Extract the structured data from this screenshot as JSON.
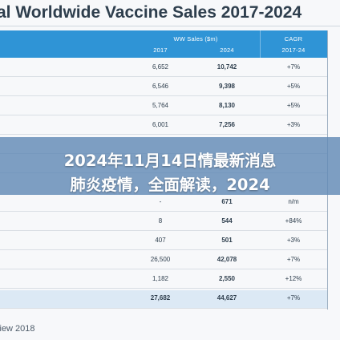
{
  "title": "al Worldwide Vaccine Sales 2017-2024",
  "header": {
    "sales_group": "WW Sales ($m)",
    "col_2017": "2017",
    "col_2024": "2024",
    "cagr_line1": "CAGR",
    "cagr_line2": "2017-24"
  },
  "rows": [
    {
      "y2017": "6,652",
      "y2024": "10,742",
      "cagr": "+7%"
    },
    {
      "y2017": "6,546",
      "y2024": "9,398",
      "cagr": "+5%"
    },
    {
      "y2017": "5,764",
      "y2024": "8,130",
      "cagr": "+5%"
    },
    {
      "y2017": "6,001",
      "y2024": "7,256",
      "cagr": "+3%"
    },
    {
      "y2017": "",
      "y2024": "",
      "cagr": ""
    },
    {
      "y2017": "",
      "y2024": "",
      "cagr": ""
    },
    {
      "y2017": "-",
      "y2024": "671",
      "cagr": "n/m"
    },
    {
      "y2017": "8",
      "y2024": "544",
      "cagr": "+84%"
    },
    {
      "y2017": "407",
      "y2024": "501",
      "cagr": "+3%"
    },
    {
      "y2017": "26,500",
      "y2024": "42,078",
      "cagr": "+7%"
    },
    {
      "y2017": "1,182",
      "y2024": "2,550",
      "cagr": "+12%"
    }
  ],
  "total": {
    "y2017": "27,682",
    "y2024": "44,627",
    "cagr": "+7%"
  },
  "source": "view 2018",
  "banner": {
    "line1": "2024年11月14日情最新消息",
    "line2": "肺炎疫情，全面解读，2024"
  },
  "colors": {
    "header_bg": "#2f94d6",
    "total_bg": "#dce9f5",
    "banner_bg": "#628ab6"
  }
}
